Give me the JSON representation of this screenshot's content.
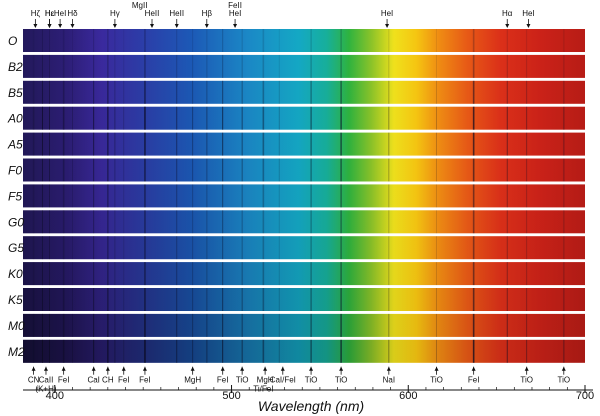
{
  "chart_data": {
    "type": "spectral-sequence",
    "xlabel": "Wavelength (nm)",
    "x_ticks": [
      400,
      500,
      600,
      700
    ],
    "xlim": [
      382,
      700
    ],
    "rows": [
      {
        "class": "O",
        "dark_intensity": 0.02,
        "absorption_strength": 0.25
      },
      {
        "class": "B2",
        "dark_intensity": 0.03,
        "absorption_strength": 0.35
      },
      {
        "class": "B5",
        "dark_intensity": 0.05,
        "absorption_strength": 0.55
      },
      {
        "class": "A0",
        "dark_intensity": 0.06,
        "absorption_strength": 0.75
      },
      {
        "class": "A5",
        "dark_intensity": 0.07,
        "absorption_strength": 0.7
      },
      {
        "class": "F0",
        "dark_intensity": 0.09,
        "absorption_strength": 0.6
      },
      {
        "class": "F5",
        "dark_intensity": 0.11,
        "absorption_strength": 0.5
      },
      {
        "class": "G0",
        "dark_intensity": 0.14,
        "absorption_strength": 0.45
      },
      {
        "class": "G5",
        "dark_intensity": 0.18,
        "absorption_strength": 0.45
      },
      {
        "class": "K0",
        "dark_intensity": 0.24,
        "absorption_strength": 0.5
      },
      {
        "class": "K5",
        "dark_intensity": 0.33,
        "absorption_strength": 0.6
      },
      {
        "class": "M0",
        "dark_intensity": 0.42,
        "absorption_strength": 0.7
      },
      {
        "class": "M2",
        "dark_intensity": 0.5,
        "absorption_strength": 0.8
      }
    ],
    "top_lines": [
      {
        "label": "Hε",
        "nm": 397,
        "row": 0
      },
      {
        "label": "Hζ",
        "nm": 389,
        "row": 0
      },
      {
        "label": "Hε",
        "nm": 397,
        "row": 0
      },
      {
        "label": "HeI",
        "nm": 403,
        "row": 0
      },
      {
        "label": "Hδ",
        "nm": 410,
        "row": 0
      },
      {
        "label": "Hγ",
        "nm": 434,
        "row": 0
      },
      {
        "label": "MgII",
        "nm": 448,
        "row": 1
      },
      {
        "label": "HeII",
        "nm": 455,
        "row": 0
      },
      {
        "label": "HeII",
        "nm": 469,
        "row": 0
      },
      {
        "label": "Hβ",
        "nm": 486,
        "row": 0
      },
      {
        "label": "FeII",
        "nm": 502,
        "row": 1
      },
      {
        "label": "HeI",
        "nm": 502,
        "row": 0
      },
      {
        "label": "HeI",
        "nm": 588,
        "row": 0
      },
      {
        "label": "Hα",
        "nm": 656,
        "row": 0
      },
      {
        "label": "HeI",
        "nm": 668,
        "row": 0
      }
    ],
    "bottom_lines": [
      {
        "label": "CN",
        "nm": 388,
        "row": 0
      },
      {
        "label": "CaII",
        "nm": 395,
        "row": 0
      },
      {
        "label": "(K+H)",
        "nm": 395,
        "row": 1
      },
      {
        "label": "FeI",
        "nm": 405,
        "row": 0
      },
      {
        "label": "CaI",
        "nm": 422,
        "row": 0
      },
      {
        "label": "CH",
        "nm": 430,
        "row": 0
      },
      {
        "label": "FeI",
        "nm": 439,
        "row": 0
      },
      {
        "label": "FeI",
        "nm": 451,
        "row": 0
      },
      {
        "label": "MgH",
        "nm": 478,
        "row": 0
      },
      {
        "label": "FeI",
        "nm": 495,
        "row": 0
      },
      {
        "label": "TiO",
        "nm": 506,
        "row": 0
      },
      {
        "label": "MgH",
        "nm": 519,
        "row": 0
      },
      {
        "label": "Ti/FeI",
        "nm": 518,
        "row": 1
      },
      {
        "label": "CaI/FeI",
        "nm": 529,
        "row": 0
      },
      {
        "label": "TiO",
        "nm": 545,
        "row": 0
      },
      {
        "label": "TiO",
        "nm": 562,
        "row": 0
      },
      {
        "label": "NaI",
        "nm": 589,
        "row": 0
      },
      {
        "label": "TiO",
        "nm": 616,
        "row": 0
      },
      {
        "label": "FeI",
        "nm": 637,
        "row": 0
      },
      {
        "label": "TiO",
        "nm": 667,
        "row": 0
      },
      {
        "label": "TiO",
        "nm": 688,
        "row": 0
      }
    ]
  }
}
